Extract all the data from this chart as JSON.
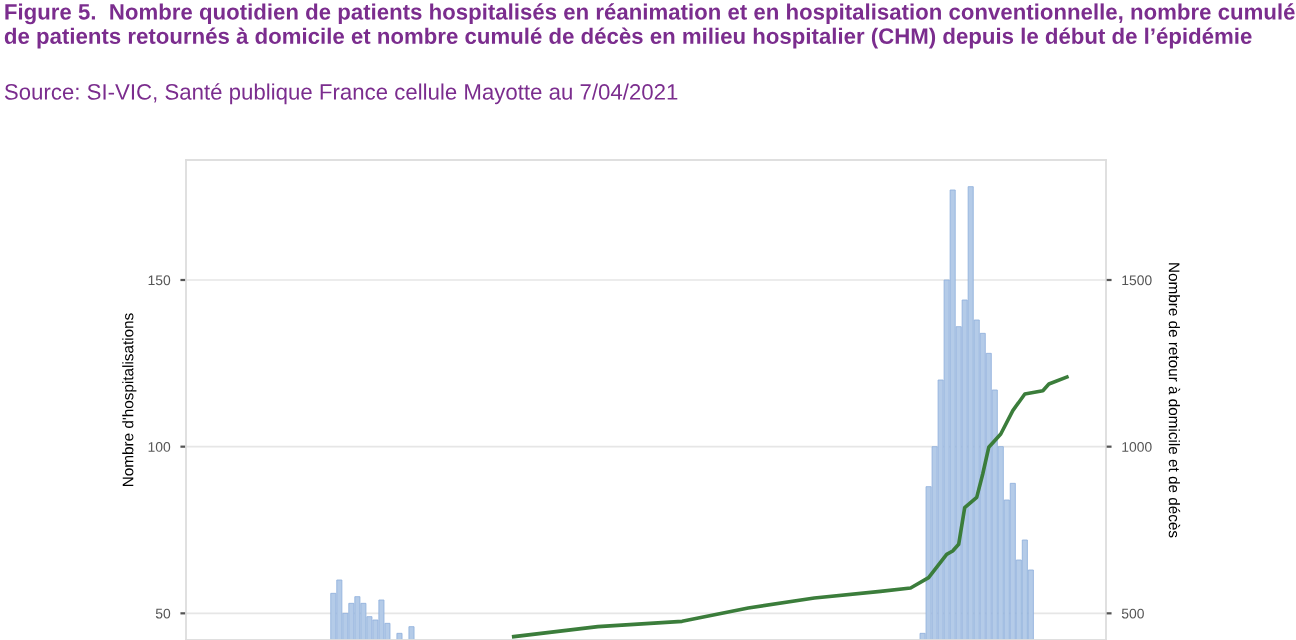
{
  "chart_data": {
    "type": "bar",
    "title": "Figure 5.  Nombre quotidien de patients hospitalisés en réanimation et en hospitalisation conventionnelle, nombre cumulé de patients retournés à domicile et nombre cumulé de décès en milieu hospitalier (CHM) depuis le début de l’épidémie",
    "annotations": [
      "Source: SI-VIC, Santé publique France cellule Mayotte au 7/04/2021"
    ],
    "ylabel": "Nombre d'hospitalisations",
    "y2label": "Nombre de retour à domicile et de décès",
    "categories": [
      null,
      null,
      null,
      null,
      null,
      null,
      null,
      null,
      null,
      null,
      null,
      null,
      null,
      null,
      null,
      null,
      null,
      null,
      null,
      null,
      null,
      null,
      null,
      null,
      null,
      null,
      null,
      null,
      null,
      null,
      null,
      null,
      null,
      null,
      null,
      null,
      null,
      null,
      null,
      null,
      null,
      null,
      null,
      null,
      null,
      null,
      null,
      null,
      null,
      null,
      null,
      null,
      null,
      null,
      null,
      null,
      null,
      null,
      null,
      null,
      null,
      null,
      null,
      null,
      null,
      null,
      null,
      null,
      null,
      null,
      null,
      null,
      null,
      null,
      null,
      null,
      null,
      null,
      null,
      null,
      null,
      null,
      null,
      null,
      null,
      null,
      null,
      null,
      null,
      null,
      null,
      null,
      null,
      null,
      null,
      null,
      null,
      null,
      null,
      null,
      null,
      null,
      null,
      null,
      null,
      null,
      null,
      null,
      null,
      null,
      null,
      null,
      null,
      null,
      null,
      null,
      null,
      null,
      null,
      null,
      null,
      null,
      null,
      null,
      null,
      null,
      null,
      null,
      null,
      null,
      null,
      null,
      null,
      null,
      null,
      null,
      null,
      null,
      null,
      null,
      null,
      null,
      null,
      null,
      null,
      null,
      null,
      null,
      null,
      null,
      null,
      null,
      null
    ],
    "series": [
      {
        "color": "#b4cbe8",
        "values": [
          null,
          null,
          null,
          null,
          null,
          null,
          null,
          null,
          null,
          null,
          null,
          null,
          null,
          null,
          null,
          null,
          null,
          null,
          null,
          null,
          null,
          null,
          null,
          null,
          56,
          60,
          50,
          53,
          55,
          53,
          49,
          48,
          54,
          47,
          null,
          44,
          null,
          46,
          null,
          null,
          null,
          null,
          null,
          null,
          null,
          null,
          null,
          null,
          null,
          null,
          null,
          null,
          null,
          null,
          null,
          null,
          null,
          null,
          null,
          null,
          null,
          null,
          null,
          null,
          null,
          null,
          null,
          null,
          null,
          null,
          null,
          null,
          null,
          null,
          null,
          null,
          null,
          null,
          null,
          null,
          null,
          null,
          null,
          null,
          null,
          null,
          null,
          null,
          null,
          null,
          null,
          null,
          null,
          null,
          null,
          null,
          null,
          null,
          null,
          null,
          null,
          null,
          null,
          null,
          null,
          null,
          null,
          null,
          null,
          null,
          null,
          null,
          null,
          null,
          null,
          null,
          null,
          null,
          null,
          null,
          null,
          null,
          44,
          88,
          100,
          120,
          150,
          177,
          136,
          144,
          178,
          138,
          134,
          128,
          117,
          100,
          84,
          89,
          66,
          72,
          63,
          null,
          null,
          null,
          null,
          null,
          null,
          null,
          null,
          null,
          null,
          null,
          null
        ]
      },
      {
        "type": "line",
        "axis": "y2",
        "color": "#3b7d3b",
        "values": [
          null,
          null,
          null,
          null,
          null,
          null,
          null,
          null,
          null,
          null,
          null,
          null,
          null,
          null,
          null,
          null,
          null,
          null,
          null,
          null,
          null,
          null,
          null,
          null,
          null,
          null,
          null,
          null,
          null,
          null,
          null,
          null,
          null,
          null,
          null,
          null,
          null,
          null,
          null,
          null,
          null,
          null,
          null,
          null,
          null,
          null,
          null,
          null,
          null,
          null,
          null,
          null,
          null,
          null,
          430,
          null,
          null,
          null,
          null,
          null,
          null,
          null,
          null,
          null,
          null,
          null,
          null,
          null,
          460,
          null,
          null,
          null,
          null,
          null,
          null,
          null,
          null,
          null,
          null,
          null,
          null,
          null,
          476,
          null,
          null,
          null,
          null,
          null,
          null,
          null,
          null,
          null,
          null,
          516,
          null,
          null,
          null,
          null,
          null,
          null,
          null,
          null,
          null,
          null,
          546,
          null,
          null,
          null,
          null,
          null,
          null,
          null,
          null,
          null,
          null,
          566,
          null,
          null,
          null,
          null,
          576,
          null,
          null,
          607,
          null,
          null,
          677,
          687,
          707,
          817,
          null,
          848,
          918,
          998,
          null,
          1038,
          null,
          1108,
          null,
          1158,
          null,
          null,
          1168,
          1188,
          null,
          null,
          1209,
          null,
          null,
          null,
          null,
          null,
          null
        ]
      }
    ],
    "ylim": [
      42,
      186
    ],
    "yticks": [
      50,
      100,
      150
    ],
    "y2lim": [
      420,
      1860
    ],
    "y2ticks": [
      500,
      1000,
      1500
    ],
    "grid": "y"
  }
}
